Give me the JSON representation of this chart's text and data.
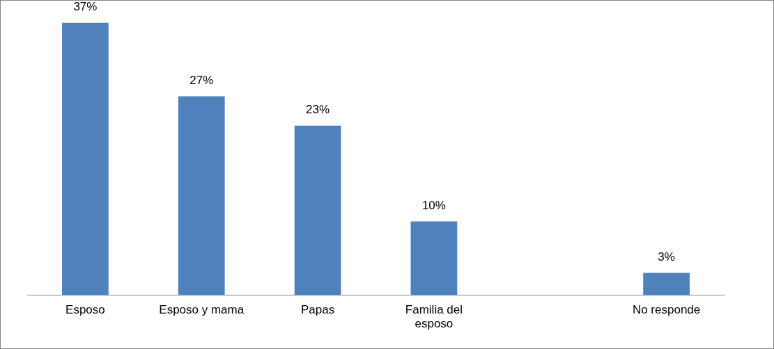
{
  "chart_data": {
    "type": "bar",
    "categories": [
      "Esposo",
      "Esposo y mama",
      "Papas",
      "Familia del esposo",
      null,
      "No responde"
    ],
    "values": [
      37,
      27,
      23,
      10,
      null,
      3
    ],
    "value_labels": [
      "37%",
      "27%",
      "23%",
      "10%",
      null,
      "3%"
    ],
    "color": "#4f81bd",
    "ylim": [
      0,
      40
    ],
    "tick_labels": "x",
    "grid": false,
    "legend": false
  }
}
